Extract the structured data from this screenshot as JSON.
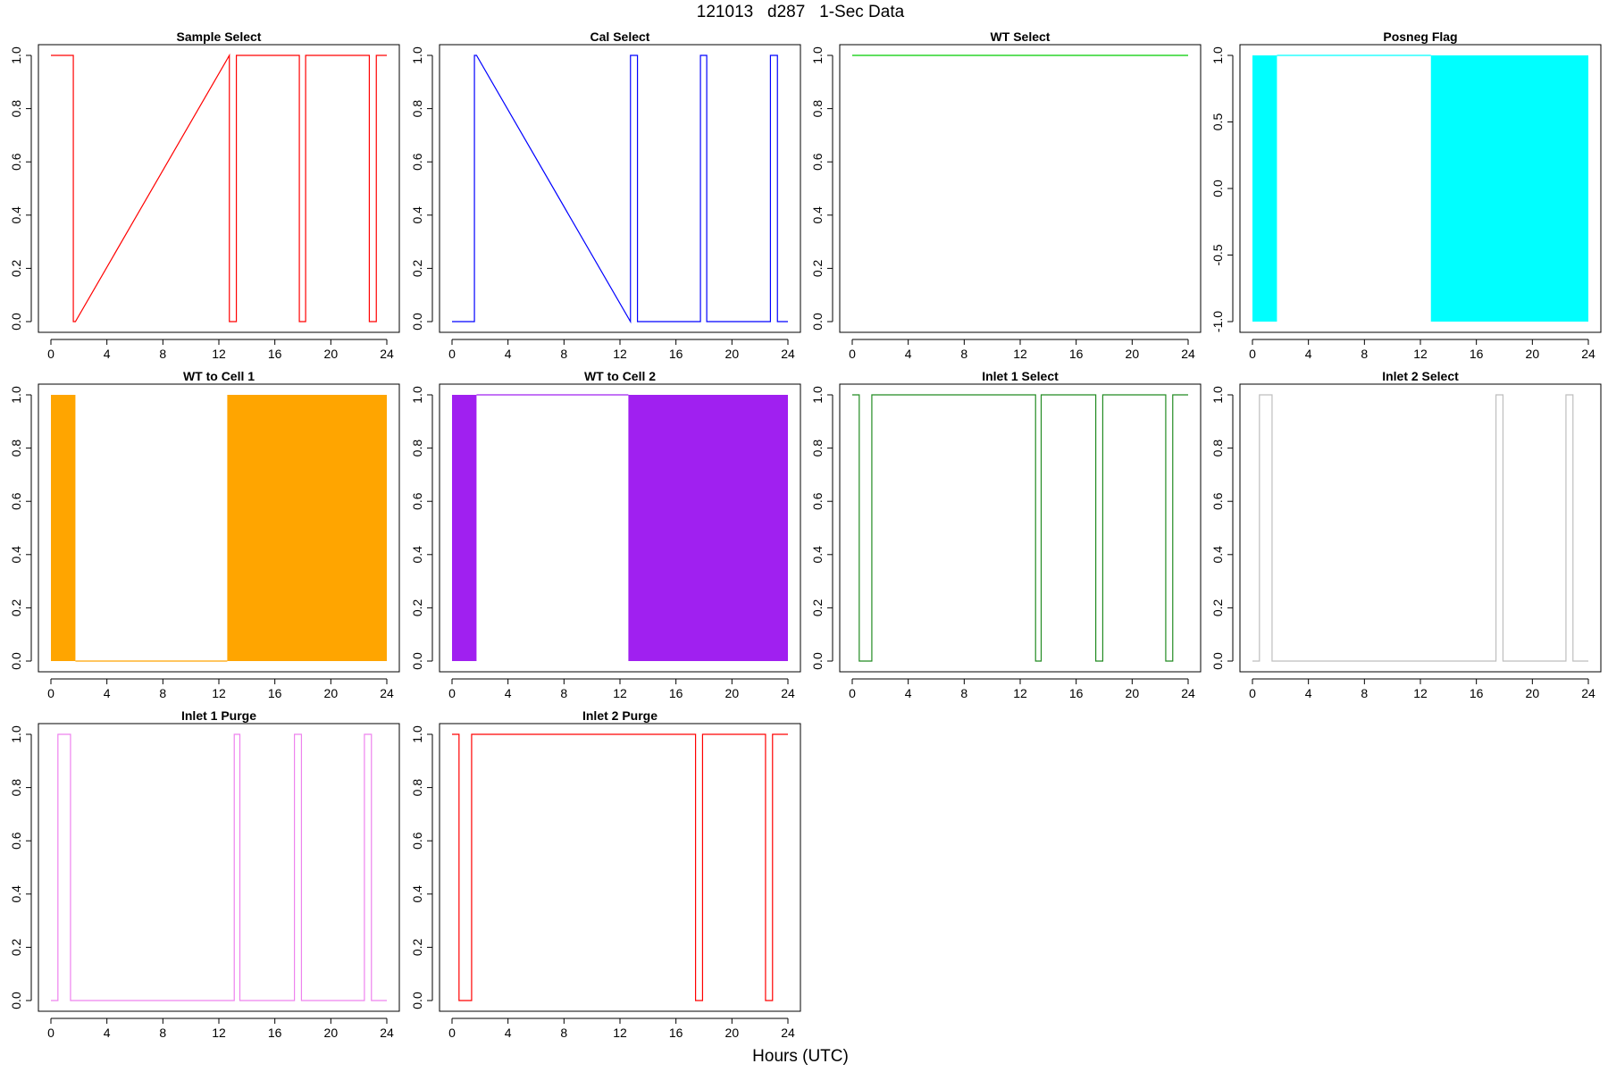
{
  "page_title": "121013   d287   1-Sec Data",
  "shared_xlabel": "Hours (UTC)",
  "chart_data": [
    {
      "type": "line",
      "title": "Sample Select",
      "color": "#ff0000",
      "xlim": [
        0,
        24
      ],
      "ylim": [
        0,
        1
      ],
      "xticks": [
        0,
        4,
        8,
        12,
        16,
        20,
        24
      ],
      "yticks": [
        0,
        0.2,
        0.4,
        0.6,
        0.8,
        1
      ],
      "ytick_labels": [
        "0.0",
        "0.2",
        "0.4",
        "0.6",
        "0.8",
        "1.0"
      ],
      "series": [
        {
          "x": [
            0,
            1.6,
            1.6,
            1.75,
            12.75,
            12.75,
            13.25,
            13.25,
            17.75,
            17.75,
            18.2,
            18.2,
            22.75,
            22.75,
            23.25,
            23.25,
            24
          ],
          "y": [
            1,
            1,
            0,
            0,
            1,
            0,
            0,
            1,
            1,
            0,
            0,
            1,
            1,
            0,
            0,
            1,
            1
          ]
        }
      ]
    },
    {
      "type": "line",
      "title": "Cal Select",
      "color": "#0000ff",
      "xlim": [
        0,
        24
      ],
      "ylim": [
        0,
        1
      ],
      "xticks": [
        0,
        4,
        8,
        12,
        16,
        20,
        24
      ],
      "yticks": [
        0,
        0.2,
        0.4,
        0.6,
        0.8,
        1
      ],
      "ytick_labels": [
        "0.0",
        "0.2",
        "0.4",
        "0.6",
        "0.8",
        "1.0"
      ],
      "series": [
        {
          "x": [
            0,
            1.6,
            1.6,
            1.75,
            12.75,
            12.75,
            13.25,
            13.25,
            17.75,
            17.75,
            18.2,
            18.2,
            22.75,
            22.75,
            23.25,
            23.25,
            24
          ],
          "y": [
            0,
            0,
            1,
            1,
            0,
            1,
            1,
            0,
            0,
            1,
            1,
            0,
            0,
            1,
            1,
            0,
            0
          ]
        }
      ]
    },
    {
      "type": "line",
      "title": "WT Select",
      "color": "#00cc00",
      "xlim": [
        0,
        24
      ],
      "ylim": [
        0,
        1
      ],
      "xticks": [
        0,
        4,
        8,
        12,
        16,
        20,
        24
      ],
      "yticks": [
        0,
        0.2,
        0.4,
        0.6,
        0.8,
        1
      ],
      "ytick_labels": [
        "0.0",
        "0.2",
        "0.4",
        "0.6",
        "0.8",
        "1.0"
      ],
      "series": [
        {
          "x": [
            0,
            24
          ],
          "y": [
            1,
            1
          ]
        }
      ]
    },
    {
      "type": "area",
      "title": "Posneg Flag",
      "color": "#00ffff",
      "xlim": [
        0,
        24
      ],
      "ylim": [
        -1,
        1
      ],
      "xticks": [
        0,
        4,
        8,
        12,
        16,
        20,
        24
      ],
      "yticks": [
        -1,
        -0.5,
        0,
        0.5,
        1
      ],
      "ytick_labels": [
        "-1.0",
        "-0.5",
        "0.0",
        "0.5",
        "1.0"
      ],
      "blocks": [
        [
          0,
          1.75
        ],
        [
          12.75,
          24
        ]
      ],
      "block_range": [
        -1,
        1
      ],
      "series": [
        {
          "x": [
            1.75,
            12.75
          ],
          "y": [
            1,
            1
          ]
        }
      ]
    },
    {
      "type": "area",
      "title": "WT to Cell 1",
      "color": "#ffa500",
      "xlim": [
        0,
        24
      ],
      "ylim": [
        0,
        1
      ],
      "xticks": [
        0,
        4,
        8,
        12,
        16,
        20,
        24
      ],
      "yticks": [
        0,
        0.2,
        0.4,
        0.6,
        0.8,
        1
      ],
      "ytick_labels": [
        "0.0",
        "0.2",
        "0.4",
        "0.6",
        "0.8",
        "1.0"
      ],
      "blocks": [
        [
          0,
          1.75
        ],
        [
          12.6,
          24
        ]
      ],
      "block_range": [
        0,
        1
      ],
      "series": [
        {
          "x": [
            1.75,
            12.6
          ],
          "y": [
            0,
            0
          ]
        }
      ]
    },
    {
      "type": "area",
      "title": "WT to Cell 2",
      "color": "#a020f0",
      "xlim": [
        0,
        24
      ],
      "ylim": [
        0,
        1
      ],
      "xticks": [
        0,
        4,
        8,
        12,
        16,
        20,
        24
      ],
      "yticks": [
        0,
        0.2,
        0.4,
        0.6,
        0.8,
        1
      ],
      "ytick_labels": [
        "0.0",
        "0.2",
        "0.4",
        "0.6",
        "0.8",
        "1.0"
      ],
      "blocks": [
        [
          0,
          1.75
        ],
        [
          12.6,
          24
        ]
      ],
      "block_range": [
        0,
        1
      ],
      "series": [
        {
          "x": [
            1.75,
            12.6
          ],
          "y": [
            1,
            1
          ]
        }
      ]
    },
    {
      "type": "line",
      "title": "Inlet 1 Select",
      "color": "#228b22",
      "xlim": [
        0,
        24
      ],
      "ylim": [
        0,
        1
      ],
      "xticks": [
        0,
        4,
        8,
        12,
        16,
        20,
        24
      ],
      "yticks": [
        0,
        0.2,
        0.4,
        0.6,
        0.8,
        1
      ],
      "ytick_labels": [
        "0.0",
        "0.2",
        "0.4",
        "0.6",
        "0.8",
        "1.0"
      ],
      "series": [
        {
          "x": [
            0,
            0.5,
            0.5,
            1.4,
            1.4,
            13.1,
            13.1,
            13.5,
            13.5,
            17.4,
            17.4,
            17.9,
            17.9,
            22.4,
            22.4,
            22.9,
            22.9,
            24
          ],
          "y": [
            1,
            1,
            0,
            0,
            1,
            1,
            0,
            0,
            1,
            1,
            0,
            0,
            1,
            1,
            0,
            0,
            1,
            1
          ]
        }
      ]
    },
    {
      "type": "line",
      "title": "Inlet 2 Select",
      "color": "#bebebe",
      "xlim": [
        0,
        24
      ],
      "ylim": [
        0,
        1
      ],
      "xticks": [
        0,
        4,
        8,
        12,
        16,
        20,
        24
      ],
      "yticks": [
        0,
        0.2,
        0.4,
        0.6,
        0.8,
        1
      ],
      "ytick_labels": [
        "0.0",
        "0.2",
        "0.4",
        "0.6",
        "0.8",
        "1.0"
      ],
      "series": [
        {
          "x": [
            0,
            0.5,
            0.5,
            1.4,
            1.4,
            17.4,
            17.4,
            17.9,
            17.9,
            22.4,
            22.4,
            22.9,
            22.9,
            24
          ],
          "y": [
            0,
            0,
            1,
            1,
            0,
            0,
            1,
            1,
            0,
            0,
            1,
            1,
            0,
            0
          ]
        }
      ]
    },
    {
      "type": "line",
      "title": "Inlet 1 Purge",
      "color": "#ee82ee",
      "xlim": [
        0,
        24
      ],
      "ylim": [
        0,
        1
      ],
      "xticks": [
        0,
        4,
        8,
        12,
        16,
        20,
        24
      ],
      "yticks": [
        0,
        0.2,
        0.4,
        0.6,
        0.8,
        1
      ],
      "ytick_labels": [
        "0.0",
        "0.2",
        "0.4",
        "0.6",
        "0.8",
        "1.0"
      ],
      "series": [
        {
          "x": [
            0,
            0.5,
            0.5,
            1.4,
            1.4,
            13.1,
            13.1,
            13.5,
            13.5,
            17.4,
            17.4,
            17.9,
            17.9,
            22.4,
            22.4,
            22.9,
            22.9,
            24
          ],
          "y": [
            0,
            0,
            1,
            1,
            0,
            0,
            1,
            1,
            0,
            0,
            1,
            1,
            0,
            0,
            1,
            1,
            0,
            0
          ]
        }
      ]
    },
    {
      "type": "line",
      "title": "Inlet 2 Purge",
      "color": "#ff0000",
      "xlim": [
        0,
        24
      ],
      "ylim": [
        0,
        1
      ],
      "xticks": [
        0,
        4,
        8,
        12,
        16,
        20,
        24
      ],
      "yticks": [
        0,
        0.2,
        0.4,
        0.6,
        0.8,
        1
      ],
      "ytick_labels": [
        "0.0",
        "0.2",
        "0.4",
        "0.6",
        "0.8",
        "1.0"
      ],
      "series": [
        {
          "x": [
            0,
            0.5,
            0.5,
            1.4,
            1.4,
            17.4,
            17.4,
            17.9,
            17.9,
            22.4,
            22.4,
            22.9,
            22.9,
            24
          ],
          "y": [
            1,
            1,
            0,
            0,
            1,
            1,
            0,
            0,
            1,
            1,
            0,
            0,
            1,
            1
          ]
        }
      ]
    }
  ]
}
